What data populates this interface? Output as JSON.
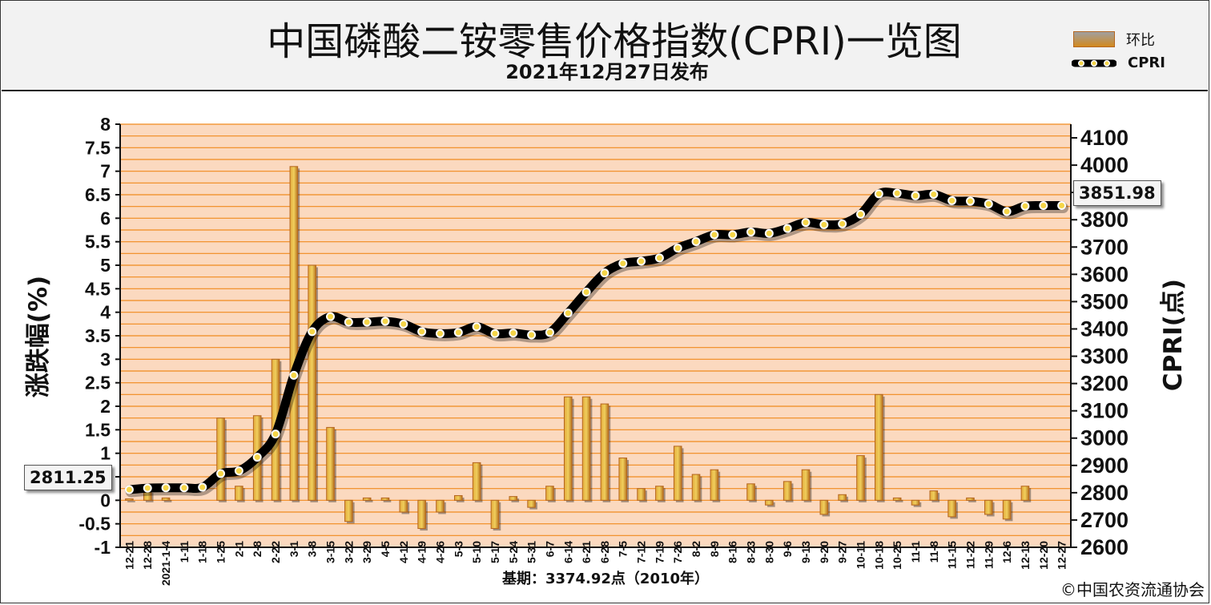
{
  "header": {
    "title": "中国磷酸二铵零售价格指数(CPRI)一览图",
    "subtitle": "2021年12月27日发布"
  },
  "legend": [
    {
      "label": "环比",
      "icon": "bar-swatch-icon"
    },
    {
      "label": "CPRI",
      "icon": "line-marker-icon"
    }
  ],
  "colors": {
    "plot_bg": "#fbd9bf",
    "grid": "#f08a1e",
    "bar_fill": "#d9a13a",
    "bar_edge": "#b5651d",
    "line": "#000000",
    "marker": "#f5d548"
  },
  "footer": {
    "base_note": "基期：3374.92点（2010年）",
    "copyright": "©中国农资流通协会"
  },
  "callouts": {
    "start_value": "2811.25",
    "end_value": "3851.98"
  },
  "chart_data": {
    "type": "bar+line",
    "categories": [
      "12-21",
      "12-28",
      "2021-1-4",
      "1-11",
      "1-18",
      "1-25",
      "2-1",
      "2-8",
      "2-22",
      "3-1",
      "3-8",
      "3-15",
      "3-22",
      "3-29",
      "4-5",
      "4-12",
      "4-19",
      "4-26",
      "5-3",
      "5-10",
      "5-17",
      "5-24",
      "5-31",
      "6-7",
      "6-14",
      "6-21",
      "6-28",
      "7-5",
      "7-12",
      "7-19",
      "7-26",
      "8-2",
      "8-9",
      "8-16",
      "8-23",
      "8-30",
      "9-6",
      "9-13",
      "9-20",
      "9-27",
      "10-11",
      "10-18",
      "10-25",
      "11-1",
      "11-8",
      "11-15",
      "11-22",
      "11-29",
      "12-6",
      "12-13",
      "12-20",
      "12-27"
    ],
    "series": [
      {
        "name": "环比",
        "type": "bar",
        "axis": "left",
        "values": [
          0.03,
          0.2,
          0.05,
          0.0,
          0.0,
          1.75,
          0.3,
          1.8,
          3.0,
          7.1,
          5.0,
          1.55,
          -0.45,
          0.05,
          0.05,
          -0.25,
          -0.6,
          -0.25,
          0.1,
          0.8,
          -0.6,
          0.08,
          -0.15,
          0.3,
          2.2,
          2.2,
          2.05,
          0.9,
          0.25,
          0.3,
          1.15,
          0.55,
          0.65,
          0.0,
          0.35,
          -0.1,
          0.4,
          0.65,
          -0.3,
          0.12,
          0.95,
          2.25,
          0.05,
          -0.1,
          0.2,
          -0.35,
          0.05,
          -0.3,
          -0.4,
          0.3,
          0.0,
          0.0
        ]
      },
      {
        "name": "CPRI",
        "type": "line",
        "axis": "right",
        "values": [
          2811.25,
          2817,
          2818,
          2818,
          2820,
          2870,
          2880,
          2930,
          3015,
          3230,
          3390,
          3445,
          3425,
          3425,
          3428,
          3418,
          3390,
          3383,
          3387,
          3408,
          3383,
          3385,
          3378,
          3387,
          3458,
          3535,
          3605,
          3640,
          3648,
          3660,
          3696,
          3720,
          3745,
          3745,
          3755,
          3750,
          3768,
          3790,
          3782,
          3785,
          3820,
          3895,
          3897,
          3888,
          3893,
          3870,
          3868,
          3858,
          3830,
          3850,
          3852,
          3851.98
        ]
      }
    ],
    "y_left": {
      "label": "涨跌幅(%)",
      "ylim": [
        -1,
        8
      ],
      "ticks": [
        "-1",
        "-0.5",
        "0",
        "0.5",
        "1",
        "1.5",
        "2",
        "2.5",
        "3",
        "3.5",
        "4",
        "4.5",
        "5",
        "5.5",
        "6",
        "6.5",
        "7",
        "7.5",
        "8"
      ]
    },
    "y_right": {
      "label": "CPRI(点)",
      "ylim": [
        2600,
        4150
      ],
      "ticks": [
        "2600",
        "2700",
        "2800",
        "2900",
        "3000",
        "3100",
        "3200",
        "3300",
        "3400",
        "3500",
        "3600",
        "3700",
        "3800",
        "3900",
        "4000",
        "4100"
      ]
    },
    "legend_position": "top-right",
    "grid": true
  }
}
